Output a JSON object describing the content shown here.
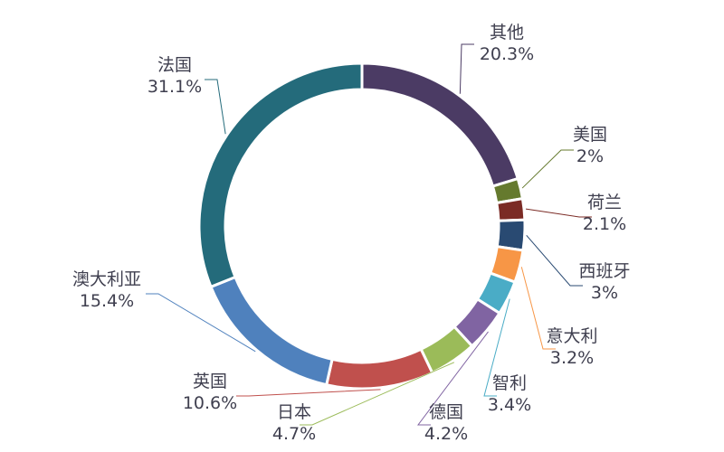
{
  "chart_data": {
    "type": "pie",
    "variant": "donut",
    "title": "",
    "legend": "none",
    "direction": "clockwise",
    "start": "top",
    "slices": [
      {
        "name": "其他",
        "label": "20.3%",
        "value": 20.3,
        "color": "#4b3b64"
      },
      {
        "name": "美国",
        "label": "2%",
        "value": 2.0,
        "color": "#657a2e"
      },
      {
        "name": "荷兰",
        "label": "2.1%",
        "value": 2.1,
        "color": "#7b2b25"
      },
      {
        "name": "西班牙",
        "label": "3%",
        "value": 3.0,
        "color": "#294a72"
      },
      {
        "name": "意大利",
        "label": "3.2%",
        "value": 3.2,
        "color": "#f79646"
      },
      {
        "name": "智利",
        "label": "3.4%",
        "value": 3.4,
        "color": "#4aacc6"
      },
      {
        "name": "德国",
        "label": "4.2%",
        "value": 4.2,
        "color": "#8064a2"
      },
      {
        "name": "日本",
        "label": "4.7%",
        "value": 4.7,
        "color": "#9bbb59"
      },
      {
        "name": "英国",
        "label": "10.6%",
        "value": 10.6,
        "color": "#c0504d"
      },
      {
        "name": "澳大利亚",
        "label": "15.4%",
        "value": 15.4,
        "color": "#4f81bd"
      },
      {
        "name": "法国",
        "label": "31.1%",
        "value": 31.1,
        "color": "#246b7b"
      }
    ]
  }
}
